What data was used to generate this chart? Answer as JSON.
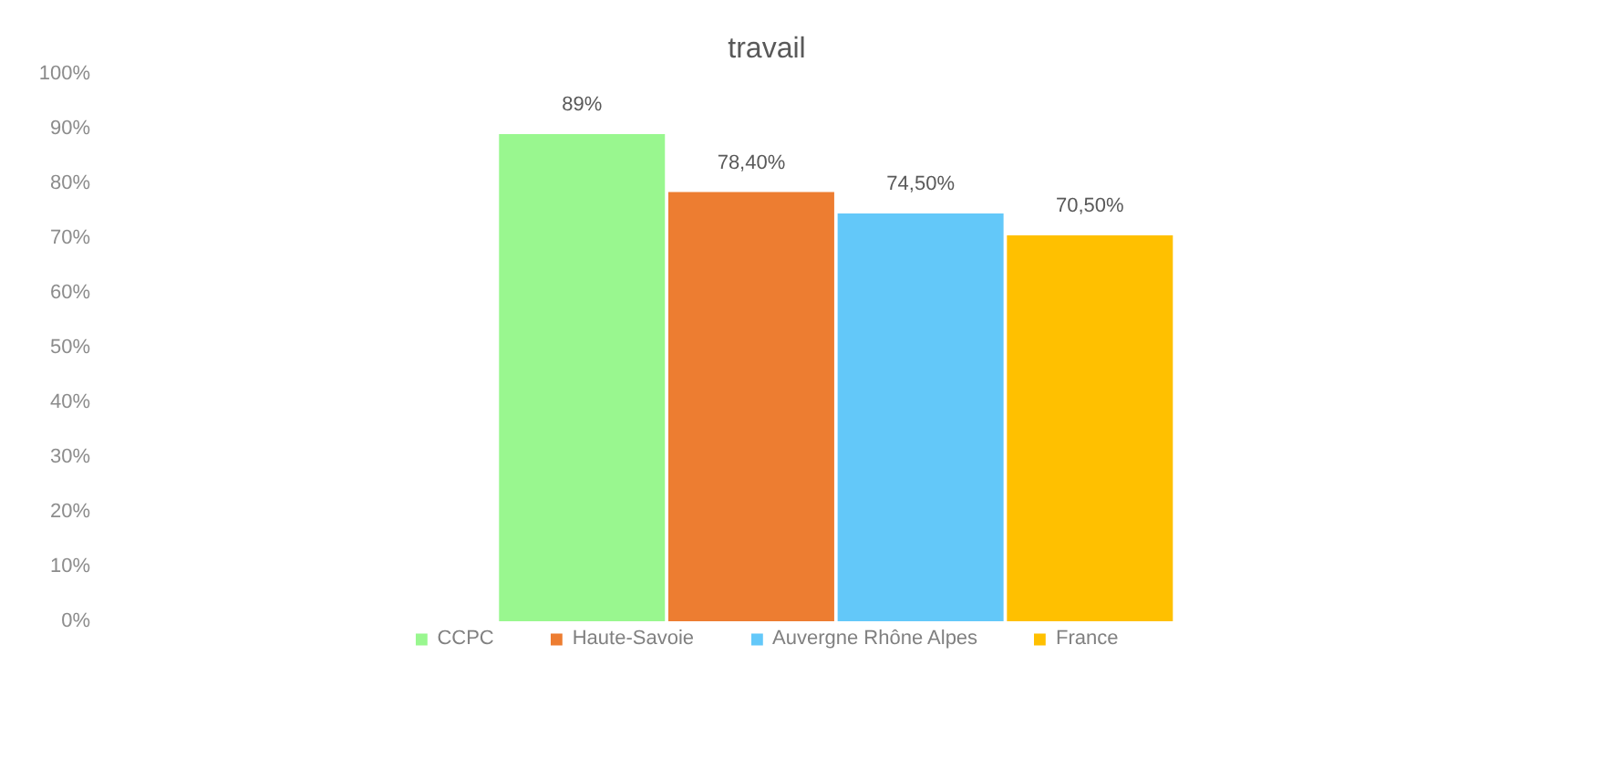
{
  "chart_data": {
    "type": "bar",
    "title": "travail",
    "categories": [
      null
    ],
    "series": [
      {
        "name": "CCPC",
        "color": "#99f78f",
        "values": [
          89
        ],
        "value_labels": [
          "89%"
        ]
      },
      {
        "name": "Haute-Savoie",
        "color": "#ed7d31",
        "values": [
          78.4
        ],
        "value_labels": [
          "78,40%"
        ]
      },
      {
        "name": "Auvergne Rhône Alpes",
        "color": "#63c8f9",
        "values": [
          74.5
        ],
        "value_labels": [
          "74,50%"
        ]
      },
      {
        "name": "France",
        "color": "#ffc000",
        "values": [
          70.5
        ],
        "value_labels": [
          "70,50%"
        ]
      }
    ],
    "ylim": [
      0,
      100
    ],
    "yticks": [
      {
        "value": 0,
        "label": "0%"
      },
      {
        "value": 10,
        "label": "10%"
      },
      {
        "value": 20,
        "label": "20%"
      },
      {
        "value": 30,
        "label": "30%"
      },
      {
        "value": 40,
        "label": "40%"
      },
      {
        "value": 50,
        "label": "50%"
      },
      {
        "value": 60,
        "label": "60%"
      },
      {
        "value": 70,
        "label": "70%"
      },
      {
        "value": 80,
        "label": "80%"
      },
      {
        "value": 90,
        "label": "90%"
      },
      {
        "value": 100,
        "label": "100%"
      }
    ],
    "grid": false,
    "legend": "bottom",
    "tick_labels": "y"
  }
}
